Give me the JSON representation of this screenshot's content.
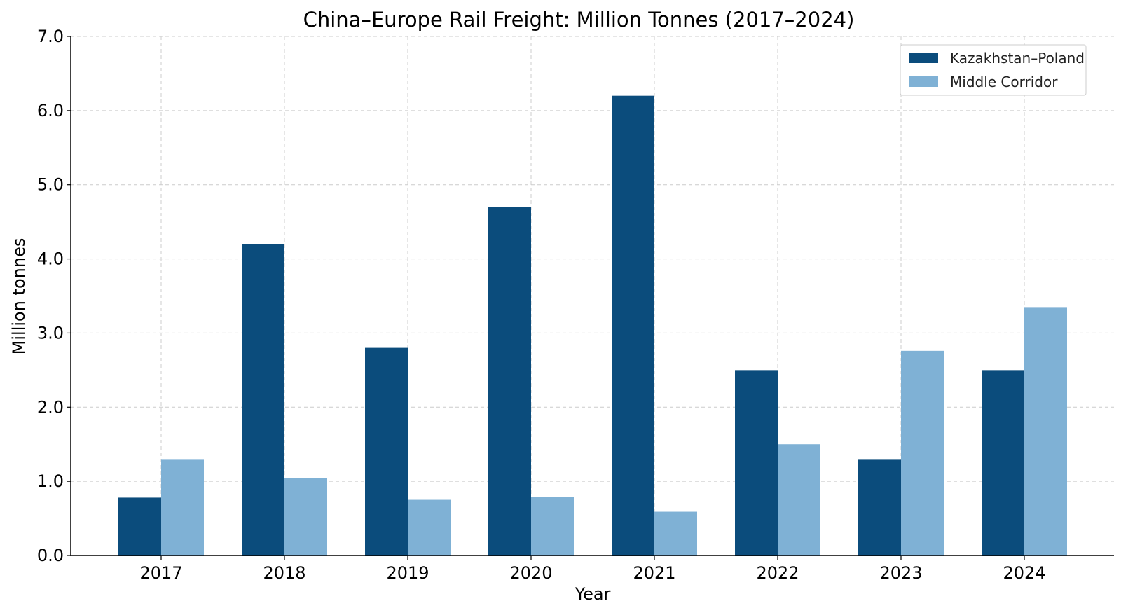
{
  "chart_data": {
    "type": "bar",
    "title": "China–Europe Rail Freight: Million Tonnes (2017–2024)",
    "xlabel": "Year",
    "ylabel": "Million tonnes",
    "categories": [
      "2017",
      "2018",
      "2019",
      "2020",
      "2021",
      "2022",
      "2023",
      "2024"
    ],
    "series": [
      {
        "name": "Kazakhstan–Poland",
        "color": "#0b4c7c",
        "values": [
          0.78,
          4.2,
          2.8,
          4.7,
          6.2,
          2.5,
          1.3,
          2.5
        ]
      },
      {
        "name": "Middle Corridor",
        "color": "#7fb1d5",
        "values": [
          1.3,
          1.04,
          0.76,
          0.79,
          0.59,
          1.5,
          2.76,
          3.35
        ]
      }
    ],
    "ylim": [
      0,
      7
    ],
    "yticks": [
      "0.0",
      "1.0",
      "2.0",
      "3.0",
      "4.0",
      "5.0",
      "6.0",
      "7.0"
    ],
    "grid": true,
    "legend_position": "top-right"
  }
}
